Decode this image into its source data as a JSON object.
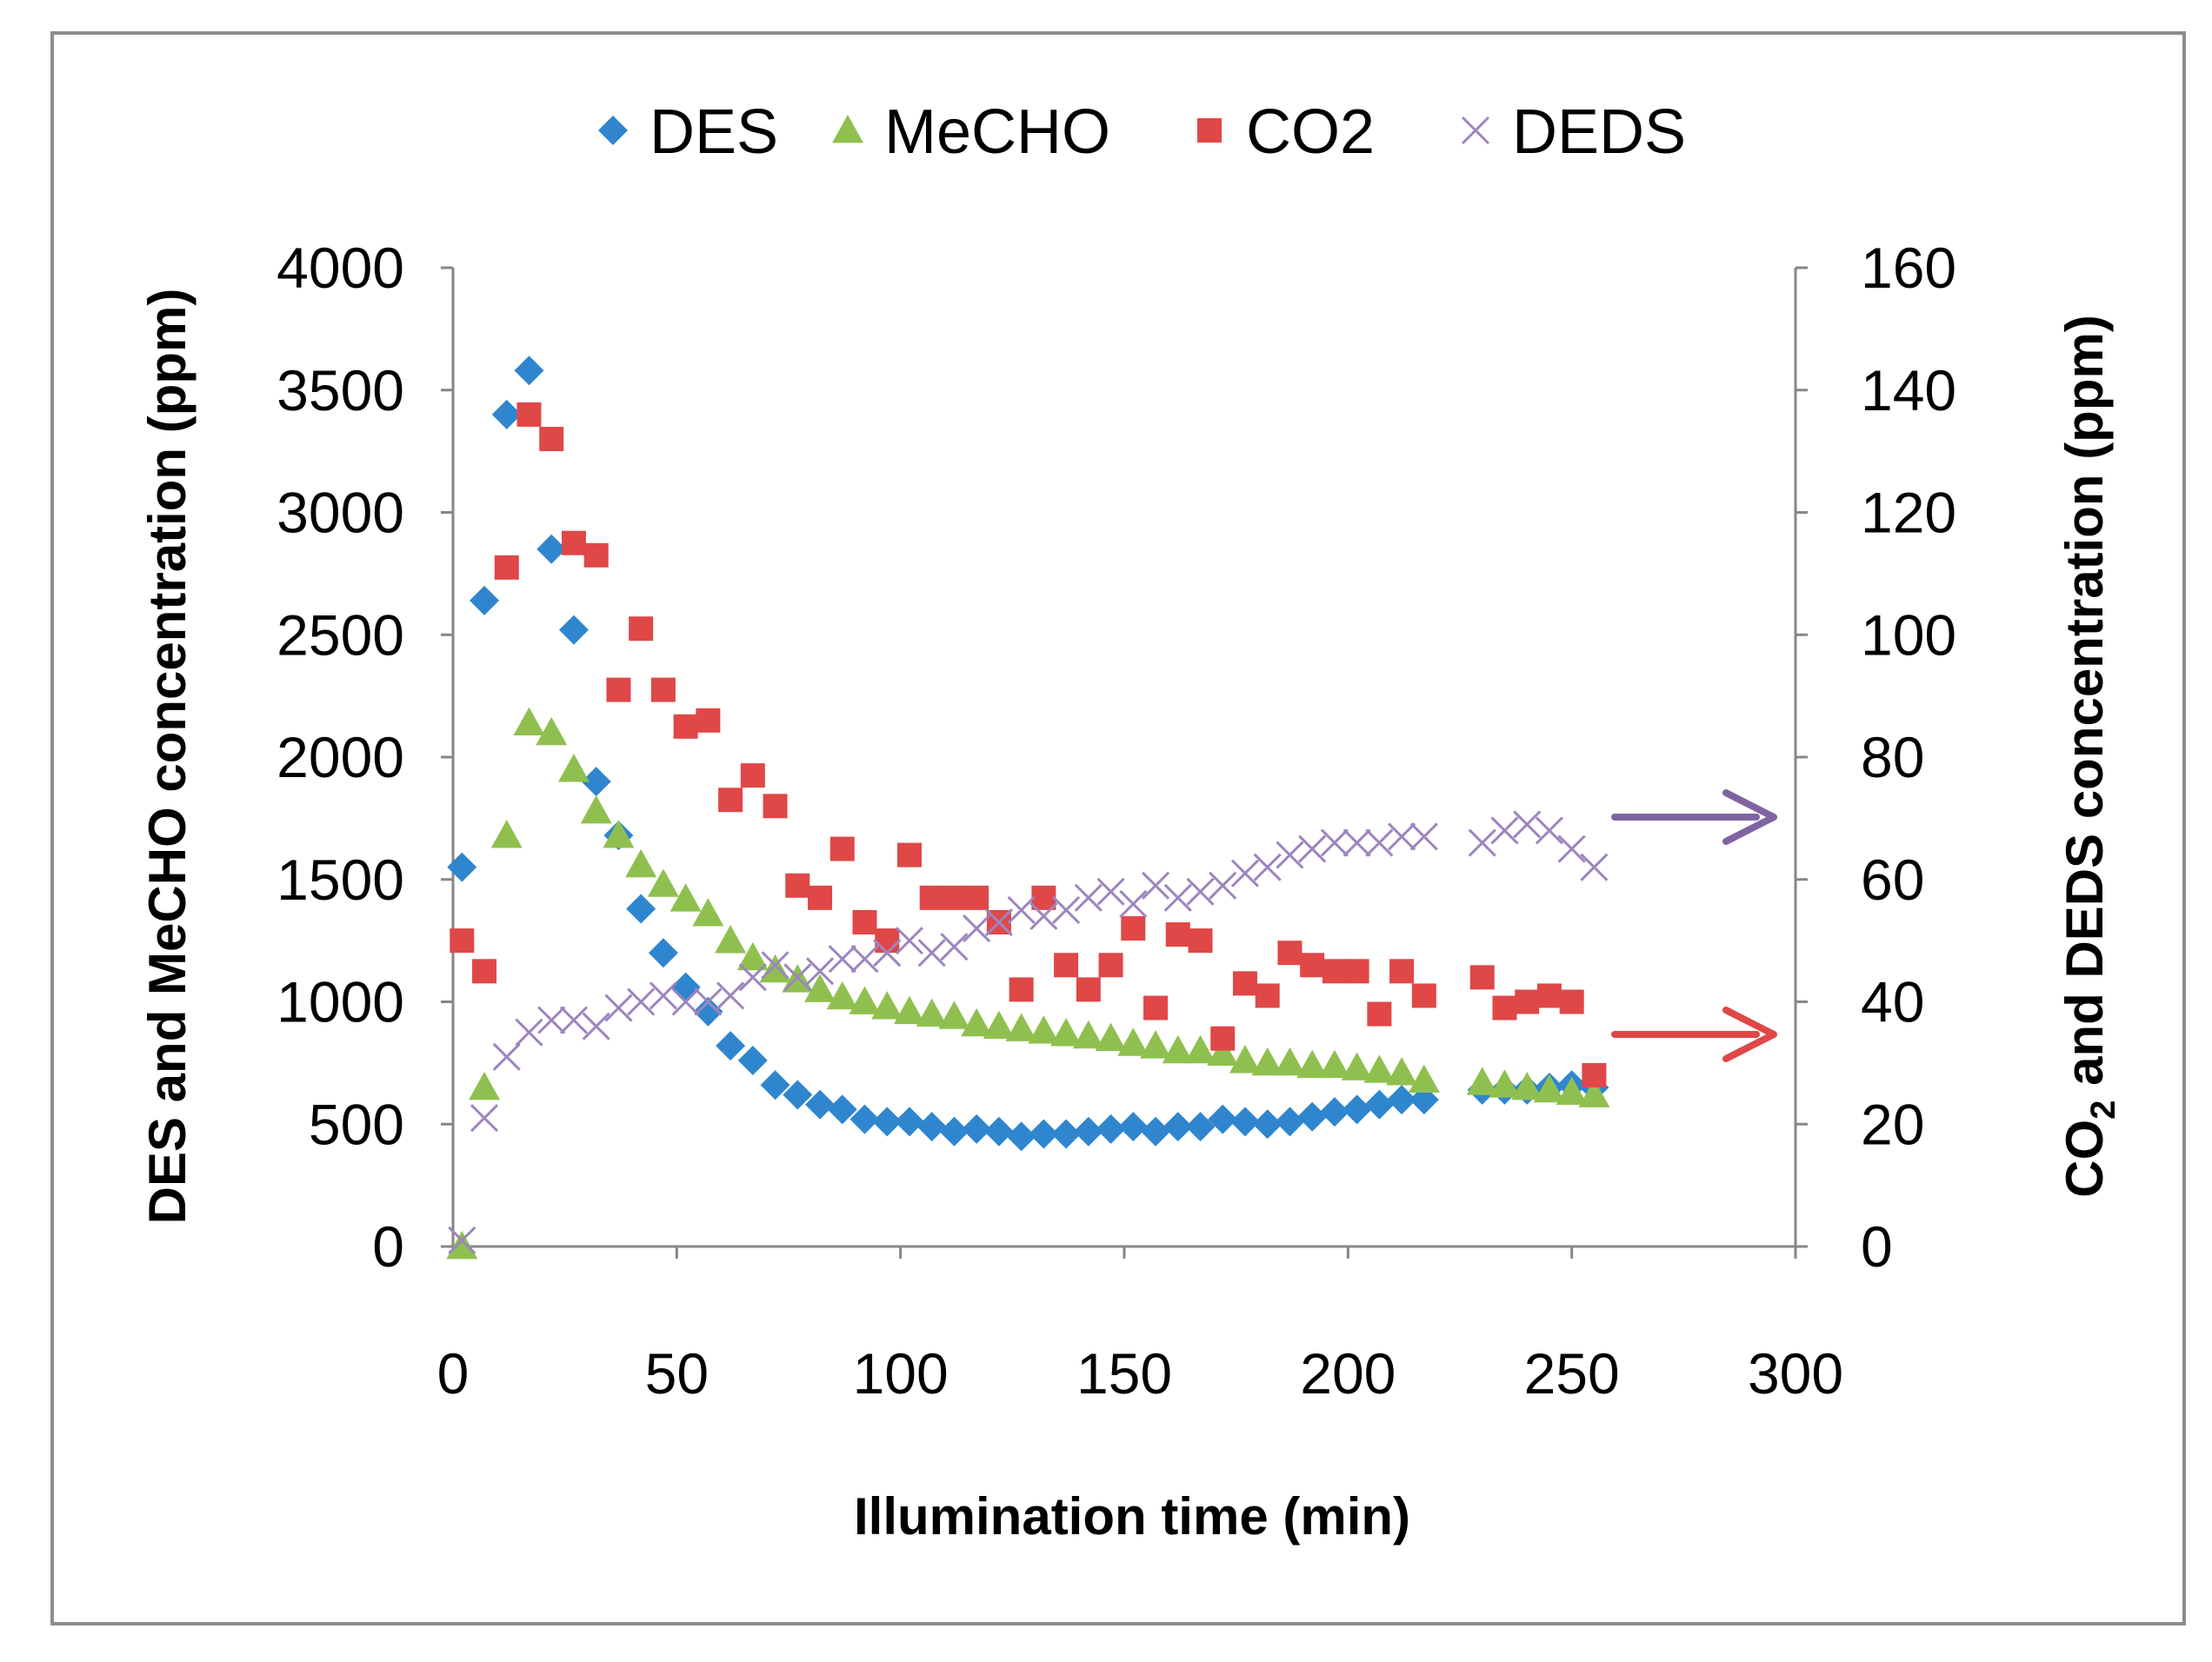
{
  "chart_data": {
    "type": "scatter",
    "title": "",
    "xlabel": "Illumination time (min)",
    "ylabel_left": "DES and MeCHO concentration (ppm)",
    "ylabel_right": {
      "prefix": "CO",
      "subscript": "2",
      "suffix": " and DEDS concentration (ppm)"
    },
    "xlim": [
      0,
      300
    ],
    "ylim_left": [
      0,
      4000
    ],
    "ylim_right": [
      0,
      160
    ],
    "x_ticks": [
      "0",
      "50",
      "100",
      "150",
      "200",
      "250",
      "300"
    ],
    "y_left_ticks": [
      "0",
      "500",
      "1000",
      "1500",
      "2000",
      "2500",
      "3000",
      "3500",
      "4000"
    ],
    "y_right_ticks": [
      "0",
      "20",
      "40",
      "60",
      "80",
      "100",
      "120",
      "140",
      "160"
    ],
    "grid": false,
    "legend_position": "top",
    "series": [
      {
        "name": "DES",
        "axis": "left",
        "marker": "diamond",
        "color": "#2f86cf",
        "x": [
          2,
          7,
          12,
          17,
          22,
          27,
          32,
          37,
          42,
          47,
          52,
          57,
          62,
          67,
          72,
          77,
          82,
          87,
          92,
          97,
          102,
          107,
          112,
          117,
          122,
          127,
          132,
          137,
          142,
          147,
          152,
          157,
          162,
          167,
          172,
          177,
          182,
          187,
          192,
          197,
          202,
          207,
          212,
          217,
          230,
          235,
          240,
          245,
          250,
          255
        ],
        "y": [
          1550,
          2640,
          3400,
          3580,
          2850,
          2520,
          1900,
          1680,
          1380,
          1200,
          1060,
          960,
          820,
          760,
          660,
          620,
          580,
          560,
          520,
          510,
          510,
          490,
          470,
          480,
          470,
          450,
          460,
          460,
          470,
          480,
          490,
          470,
          490,
          490,
          520,
          510,
          500,
          510,
          530,
          550,
          560,
          580,
          600,
          600,
          640,
          640,
          640,
          650,
          660,
          650
        ]
      },
      {
        "name": "MeCHO",
        "axis": "left",
        "marker": "triangle",
        "color": "#8fc04f",
        "x": [
          2,
          7,
          12,
          17,
          22,
          27,
          32,
          37,
          42,
          47,
          52,
          57,
          62,
          67,
          72,
          77,
          82,
          87,
          92,
          97,
          102,
          107,
          112,
          117,
          122,
          127,
          132,
          137,
          142,
          147,
          152,
          157,
          162,
          167,
          172,
          177,
          182,
          187,
          192,
          197,
          202,
          207,
          212,
          217,
          230,
          235,
          240,
          245,
          250,
          255
        ],
        "y": [
          0,
          650,
          1680,
          2140,
          2100,
          1950,
          1780,
          1680,
          1560,
          1480,
          1420,
          1360,
          1250,
          1180,
          1130,
          1090,
          1050,
          1020,
          1000,
          980,
          960,
          950,
          940,
          910,
          900,
          890,
          880,
          870,
          860,
          850,
          830,
          820,
          800,
          800,
          790,
          760,
          750,
          750,
          740,
          740,
          730,
          720,
          710,
          680,
          670,
          660,
          650,
          640,
          630,
          620
        ]
      },
      {
        "name": "CO2",
        "axis": "right",
        "marker": "square",
        "color": "#e04747",
        "x": [
          2,
          7,
          12,
          17,
          22,
          27,
          32,
          37,
          42,
          47,
          52,
          57,
          62,
          67,
          72,
          77,
          82,
          87,
          92,
          97,
          102,
          107,
          112,
          117,
          122,
          127,
          132,
          137,
          142,
          147,
          152,
          157,
          162,
          167,
          172,
          177,
          182,
          187,
          192,
          197,
          202,
          207,
          212,
          217,
          230,
          235,
          240,
          245,
          250,
          255
        ],
        "y": [
          50,
          45,
          111,
          136,
          132,
          115,
          113,
          91,
          101,
          91,
          85,
          86,
          73,
          77,
          72,
          59,
          57,
          65,
          53,
          50,
          64,
          57,
          57,
          57,
          53,
          42,
          57,
          46,
          42,
          46,
          52,
          39,
          51,
          50,
          34,
          43,
          41,
          48,
          46,
          45,
          45,
          38,
          45,
          41,
          44,
          39,
          40,
          41,
          40,
          28
        ]
      },
      {
        "name": "DEDS",
        "axis": "right",
        "marker": "cross",
        "color": "#9d85bf",
        "x": [
          2,
          7,
          12,
          17,
          22,
          27,
          32,
          37,
          42,
          47,
          52,
          57,
          62,
          67,
          72,
          77,
          82,
          87,
          92,
          97,
          102,
          107,
          112,
          117,
          122,
          127,
          132,
          137,
          142,
          147,
          152,
          157,
          162,
          167,
          172,
          177,
          182,
          187,
          192,
          197,
          202,
          207,
          212,
          217,
          230,
          235,
          240,
          245,
          250,
          255
        ],
        "y": [
          1,
          21,
          31,
          35,
          37,
          37,
          36,
          39,
          40,
          41,
          40,
          40,
          41,
          44,
          46,
          44,
          45,
          47,
          47,
          48,
          50,
          48,
          49,
          52,
          53,
          55,
          54,
          55,
          57,
          58,
          56,
          59,
          57,
          58,
          59,
          61,
          62,
          64,
          65,
          66,
          66,
          66,
          67,
          67,
          66,
          68,
          69,
          68,
          65,
          62
        ]
      }
    ],
    "annotations": [
      {
        "type": "arrow",
        "direction": "right",
        "color": "#8064a2",
        "points_to": "right axis (DEDS)"
      },
      {
        "type": "arrow",
        "direction": "right",
        "color": "#e04747",
        "points_to": "right axis (CO2)"
      }
    ]
  }
}
